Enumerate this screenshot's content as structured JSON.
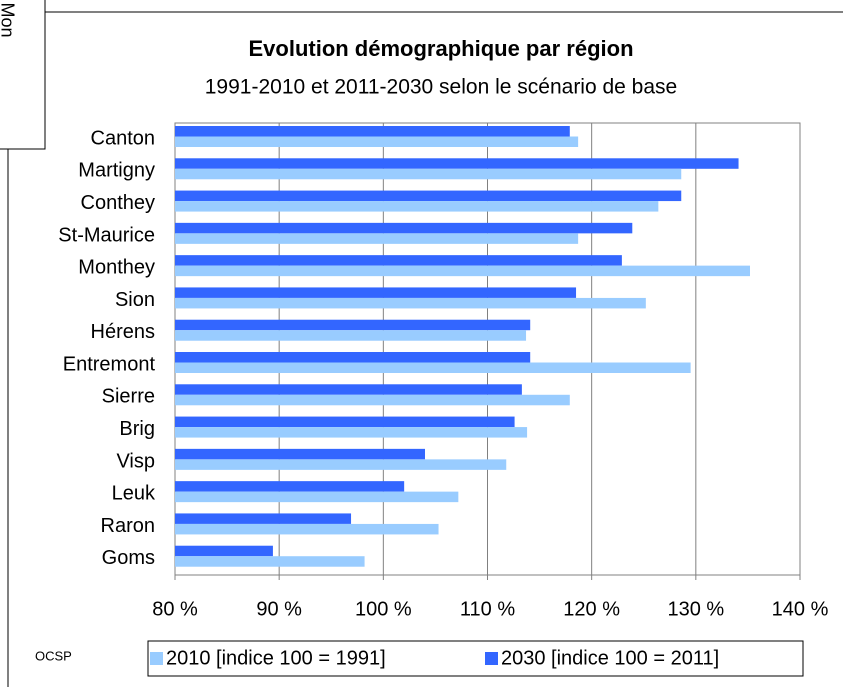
{
  "chart_data": {
    "type": "hbar",
    "title": "Evolution démographique par région",
    "subtitle": "1991-2010 et 2011-2030 selon le scénario de base",
    "categories": [
      "Canton",
      "Martigny",
      "Conthey",
      "St-Maurice",
      "Monthey",
      "Sion",
      "Hérens",
      "Entremont",
      "Sierre",
      "Brig",
      "Visp",
      "Leuk",
      "Raron",
      "Goms"
    ],
    "series": [
      {
        "name": "2010 [indice 100 = 1991]",
        "color": "#99ccff",
        "values": [
          118.7,
          128.6,
          126.4,
          118.7,
          135.2,
          125.2,
          113.7,
          129.5,
          117.9,
          113.8,
          111.8,
          107.2,
          105.3,
          98.2
        ]
      },
      {
        "name": "2030 [indice 100 = 2011]",
        "color": "#3366ff",
        "values": [
          117.9,
          134.1,
          128.6,
          123.9,
          122.9,
          118.5,
          114.1,
          114.1,
          113.3,
          112.6,
          104.0,
          102.0,
          96.9,
          89.4
        ]
      }
    ],
    "xlim": [
      80,
      140
    ],
    "xticks": [
      {
        "value": 80,
        "label": "80 %"
      },
      {
        "value": 90,
        "label": "90 %"
      },
      {
        "value": 100,
        "label": "100 %"
      },
      {
        "value": 110,
        "label": "110 %"
      },
      {
        "value": 120,
        "label": "120 %"
      },
      {
        "value": 130,
        "label": "130 %"
      },
      {
        "value": 140,
        "label": "140 %"
      }
    ],
    "grid": true,
    "legend": "bottom",
    "source": "OCSP",
    "side_text": "Mon"
  }
}
